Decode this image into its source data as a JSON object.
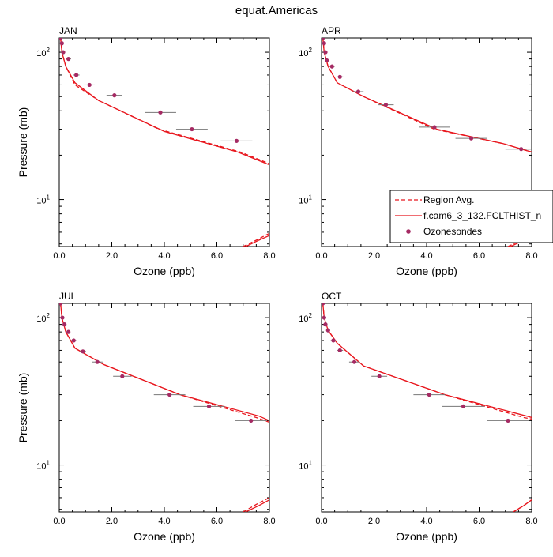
{
  "figure": {
    "title": "equat.Americas"
  },
  "legend": {
    "placement": "right-middle",
    "entries": [
      {
        "label": "Region Avg.",
        "style": "dashed",
        "color": "#e8161d"
      },
      {
        "label": "f.cam6_3_132.FCLTHIST_n",
        "style": "solid",
        "color": "#e8161d"
      },
      {
        "label": "Ozonesondes",
        "style": "marker",
        "color": "#a52a63"
      }
    ]
  },
  "colors": {
    "model": "#e8161d",
    "obs": "#a52a63",
    "errorbar": "#777777"
  },
  "chart_data": [
    {
      "type": "line",
      "title": "JAN",
      "xlabel": "Ozone (ppb)",
      "ylabel": "Pressure (mb)",
      "xlim": [
        0,
        8
      ],
      "ylim": [
        125,
        4.8
      ],
      "yscale": "log",
      "xticks": [
        0,
        2,
        4,
        6,
        8
      ],
      "xtick_labels": [
        "0.0",
        "2.0",
        "4.0",
        "6.0",
        "8.0"
      ],
      "yticks": [
        10,
        100
      ],
      "ytick_labels": [
        [
          "10",
          "1"
        ],
        [
          "10",
          "2"
        ]
      ],
      "series": [
        {
          "name": "Region Avg.",
          "style": "dashed",
          "x": [
            0.05,
            0.1,
            0.25,
            0.6,
            1.5,
            3.8,
            6.9,
            8.0
          ],
          "y": [
            125,
            100,
            80,
            60,
            47,
            30,
            21,
            17.5
          ]
        },
        {
          "name": "f.cam6_3_132.FCLTHIST_n",
          "style": "solid",
          "x": [
            0.05,
            0.1,
            0.25,
            0.6,
            1.5,
            4.0,
            6.8,
            8.0
          ],
          "y": [
            125,
            100,
            80,
            62,
            47,
            29,
            21,
            17.2
          ]
        },
        {
          "name": "Region Avg. (upper)",
          "style": "dashed",
          "x": [
            7.0,
            7.5,
            8.0
          ],
          "y": [
            4.8,
            5.3,
            5.9
          ]
        },
        {
          "name": "f.cam6_3_132.FCLTHIST_n (upper)",
          "style": "solid",
          "x": [
            7.1,
            7.6,
            8.0
          ],
          "y": [
            4.8,
            5.3,
            5.7
          ]
        }
      ],
      "observations": {
        "name": "Ozonesondes",
        "x": [
          0.05,
          0.1,
          0.15,
          0.35,
          0.65,
          1.15,
          2.1,
          3.85,
          5.05,
          6.75
        ],
        "y": [
          125,
          115,
          100,
          90,
          70,
          60,
          51,
          39,
          30,
          25
        ],
        "xerr": [
          0.03,
          0.04,
          0.05,
          0.1,
          0.12,
          0.2,
          0.3,
          0.6,
          0.6,
          0.6
        ]
      }
    },
    {
      "type": "line",
      "title": "APR",
      "xlabel": "Ozone (ppb)",
      "ylabel": "",
      "xlim": [
        0,
        8
      ],
      "ylim": [
        125,
        4.8
      ],
      "yscale": "log",
      "xticks": [
        0,
        2,
        4,
        6,
        8
      ],
      "xtick_labels": [
        "0.0",
        "2.0",
        "4.0",
        "6.0",
        "8.0"
      ],
      "yticks": [
        10,
        100
      ],
      "ytick_labels": [
        [
          "10",
          "1"
        ],
        [
          "10",
          "2"
        ]
      ],
      "series": [
        {
          "name": "Region Avg.",
          "style": "dashed",
          "x": [
            0.05,
            0.1,
            0.25,
            0.6,
            1.6,
            4.3,
            6.9,
            8.0
          ],
          "y": [
            125,
            100,
            80,
            62,
            50,
            30,
            24,
            21
          ]
        },
        {
          "name": "f.cam6_3_132.FCLTHIST_n",
          "style": "solid",
          "x": [
            0.05,
            0.1,
            0.25,
            0.6,
            1.6,
            4.4,
            6.9,
            8.0
          ],
          "y": [
            125,
            100,
            80,
            62,
            50,
            30,
            24,
            21
          ]
        },
        {
          "name": "Region Avg. (upper)",
          "style": "dashed",
          "x": [
            7.1,
            7.6,
            8.0
          ],
          "y": [
            4.8,
            5.3,
            5.8
          ]
        },
        {
          "name": "f.cam6_3_132.FCLTHIST_n (upper)",
          "style": "solid",
          "x": [
            7.2,
            7.7,
            8.0
          ],
          "y": [
            4.8,
            5.3,
            5.6
          ]
        }
      ],
      "observations": {
        "name": "Ozonesondes",
        "x": [
          0.05,
          0.1,
          0.15,
          0.2,
          0.4,
          0.7,
          1.4,
          2.45,
          4.3,
          5.7,
          7.6
        ],
        "y": [
          125,
          115,
          100,
          88,
          80,
          68,
          54,
          44,
          31,
          26,
          22
        ],
        "xerr": [
          0.03,
          0.04,
          0.05,
          0.07,
          0.1,
          0.12,
          0.2,
          0.3,
          0.6,
          0.6,
          0.6
        ]
      }
    },
    {
      "type": "line",
      "title": "JUL",
      "xlabel": "Ozone (ppb)",
      "ylabel": "Pressure (mb)",
      "xlim": [
        0,
        8
      ],
      "ylim": [
        125,
        4.8
      ],
      "yscale": "log",
      "xticks": [
        0,
        2,
        4,
        6,
        8
      ],
      "xtick_labels": [
        "0.0",
        "2.0",
        "4.0",
        "6.0",
        "8.0"
      ],
      "yticks": [
        10,
        100
      ],
      "ytick_labels": [
        [
          "10",
          "1"
        ],
        [
          "10",
          "2"
        ]
      ],
      "series": [
        {
          "name": "Region Avg.",
          "style": "dashed",
          "x": [
            0.05,
            0.1,
            0.25,
            0.6,
            1.7,
            4.6,
            7.5,
            8.0
          ],
          "y": [
            125,
            100,
            80,
            62,
            48,
            30,
            21,
            19.5
          ]
        },
        {
          "name": "f.cam6_3_132.FCLTHIST_n",
          "style": "solid",
          "x": [
            0.05,
            0.1,
            0.25,
            0.6,
            1.7,
            4.6,
            7.6,
            8.0
          ],
          "y": [
            125,
            100,
            80,
            62,
            48,
            30,
            21.5,
            20
          ]
        },
        {
          "name": "Region Avg. (upper)",
          "style": "dashed",
          "x": [
            7.0,
            7.5,
            8.0
          ],
          "y": [
            4.8,
            5.4,
            6.0
          ]
        },
        {
          "name": "f.cam6_3_132.FCLTHIST_n (upper)",
          "style": "solid",
          "x": [
            7.1,
            7.6,
            8.0
          ],
          "y": [
            4.8,
            5.3,
            5.8
          ]
        }
      ],
      "observations": {
        "name": "Ozonesondes",
        "x": [
          0.05,
          0.12,
          0.2,
          0.35,
          0.55,
          0.9,
          1.45,
          2.4,
          4.2,
          5.7,
          7.3
        ],
        "y": [
          125,
          100,
          90,
          80,
          70,
          59,
          50,
          40,
          30,
          25,
          20
        ],
        "xerr": [
          0.03,
          0.04,
          0.05,
          0.07,
          0.1,
          0.12,
          0.2,
          0.35,
          0.6,
          0.6,
          0.6
        ]
      }
    },
    {
      "type": "line",
      "title": "OCT",
      "xlabel": "Ozone (ppb)",
      "ylabel": "",
      "xlim": [
        0,
        8
      ],
      "ylim": [
        125,
        4.8
      ],
      "yscale": "log",
      "xticks": [
        0,
        2,
        4,
        6,
        8
      ],
      "xtick_labels": [
        "0.0",
        "2.0",
        "4.0",
        "6.0",
        "8.0"
      ],
      "yticks": [
        10,
        100
      ],
      "ytick_labels": [
        [
          "10",
          "1"
        ],
        [
          "10",
          "2"
        ]
      ],
      "series": [
        {
          "name": "Region Avg.",
          "style": "dashed",
          "x": [
            0.05,
            0.1,
            0.25,
            0.6,
            1.6,
            4.7,
            7.7,
            8.0
          ],
          "y": [
            125,
            100,
            82,
            67,
            47,
            30,
            21,
            20.5
          ]
        },
        {
          "name": "f.cam6_3_132.FCLTHIST_n",
          "style": "solid",
          "x": [
            0.05,
            0.1,
            0.25,
            0.6,
            1.6,
            4.7,
            7.8,
            8.0
          ],
          "y": [
            125,
            100,
            82,
            67,
            47,
            30,
            21.5,
            21
          ]
        },
        {
          "name": "Region Avg. (upper)",
          "style": "dashed",
          "x": [
            7.3,
            7.7,
            8.0
          ],
          "y": [
            4.8,
            5.3,
            5.8
          ]
        },
        {
          "name": "f.cam6_3_132.FCLTHIST_n (upper)",
          "style": "solid",
          "x": [
            7.3,
            7.7,
            8.0
          ],
          "y": [
            4.8,
            5.3,
            5.8
          ]
        }
      ],
      "observations": {
        "name": "Ozonesondes",
        "x": [
          0.05,
          0.1,
          0.15,
          0.25,
          0.45,
          0.7,
          1.25,
          2.2,
          4.1,
          5.4,
          7.1
        ],
        "y": [
          125,
          100,
          90,
          82,
          70,
          60,
          50,
          40,
          30,
          25,
          20
        ],
        "xerr": [
          0.03,
          0.04,
          0.05,
          0.07,
          0.1,
          0.12,
          0.2,
          0.3,
          0.6,
          0.8,
          0.8
        ]
      }
    }
  ]
}
